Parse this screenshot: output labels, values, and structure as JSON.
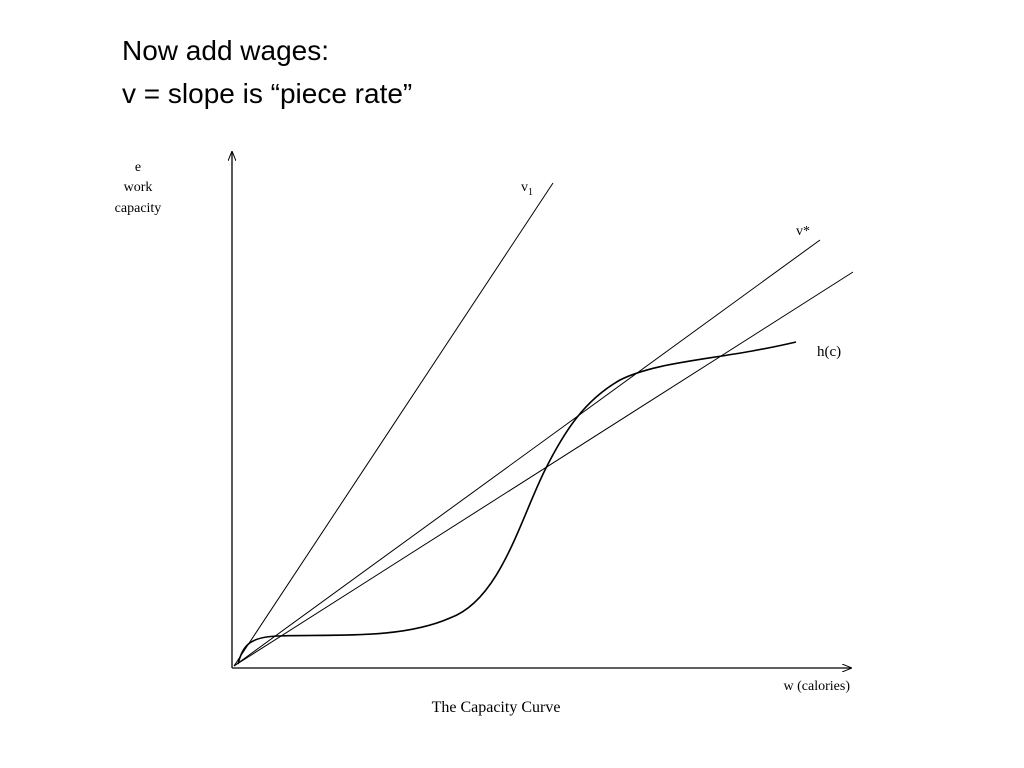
{
  "slide": {
    "title_line1": "Now add wages:",
    "title_line2": "v = slope is “piece rate”"
  },
  "diagram": {
    "y_axis_label": [
      "e",
      "work",
      "capacity"
    ],
    "x_axis_label": "w (calories)",
    "caption": "The Capacity Curve",
    "curve_label": "h(c)",
    "line_v1_label": "v",
    "line_v1_subscript": "1",
    "line_vstar_label": "v*",
    "colors": {
      "line": "#000000",
      "background": "#ffffff"
    }
  }
}
